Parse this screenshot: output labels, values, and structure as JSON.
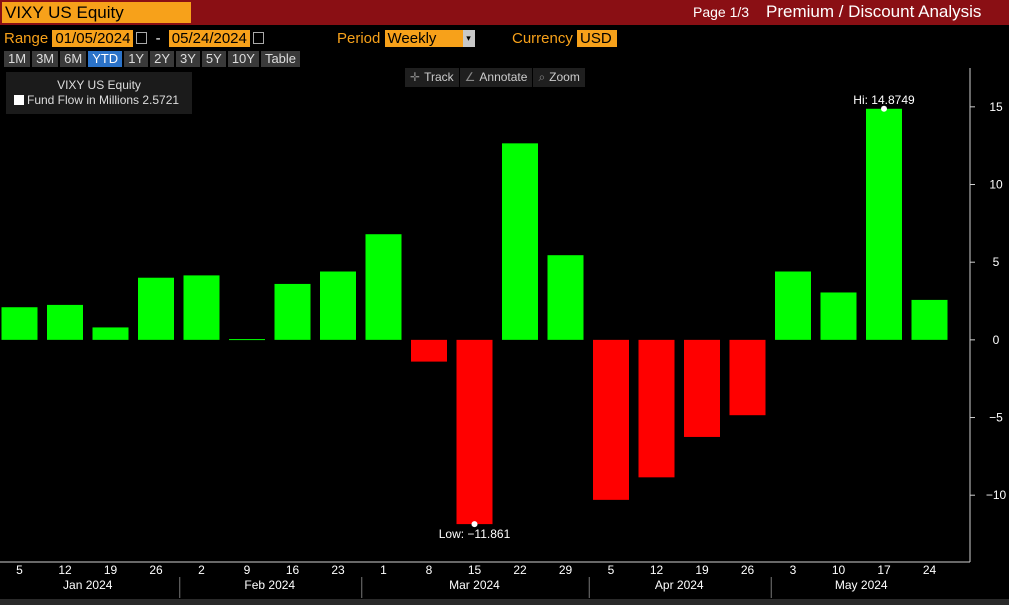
{
  "header": {
    "ticker": "VIXY US Equity",
    "page": "Page 1/3",
    "title": "Premium / Discount Analysis"
  },
  "controls": {
    "range_label": "Range",
    "start_date": "01/05/2024",
    "separator": "-",
    "end_date": "05/24/2024",
    "period_label": "Period",
    "period_value": "Weekly",
    "currency_label": "Currency",
    "currency_value": "USD",
    "range_buttons": [
      "1M",
      "3M",
      "6M",
      "YTD",
      "1Y",
      "2Y",
      "3Y",
      "5Y",
      "10Y",
      "Table"
    ],
    "active_range": "YTD"
  },
  "legend": {
    "title": "VIXY US Equity",
    "item": "Fund Flow in Millions 2.5721"
  },
  "toolbar": {
    "track": "Track",
    "annotate": "Annotate",
    "zoom": "Zoom"
  },
  "colors": {
    "positive": "#00ff00",
    "negative": "#ff0000",
    "header_bg": "#8a0f14",
    "accent": "#f7a11a"
  },
  "chart_data": {
    "type": "bar",
    "categories": [
      "5",
      "12",
      "19",
      "26",
      "2",
      "9",
      "16",
      "23",
      "1",
      "8",
      "15",
      "22",
      "29",
      "5",
      "12",
      "19",
      "26",
      "3",
      "10",
      "17",
      "24"
    ],
    "months": [
      {
        "label": "Jan 2024",
        "from": 0,
        "to": 3
      },
      {
        "label": "Feb 2024",
        "from": 4,
        "to": 7
      },
      {
        "label": "Mar 2024",
        "from": 8,
        "to": 12
      },
      {
        "label": "Apr 2024",
        "from": 13,
        "to": 16
      },
      {
        "label": "May 2024",
        "from": 17,
        "to": 20
      }
    ],
    "series": [
      {
        "name": "Fund Flow in Millions",
        "values": [
          2.1,
          2.25,
          0.8,
          4.0,
          4.15,
          0.05,
          3.6,
          4.4,
          6.8,
          -1.4,
          -11.861,
          12.65,
          5.45,
          -10.3,
          -8.85,
          -6.25,
          -4.85,
          4.4,
          3.05,
          14.8749,
          2.5721
        ]
      }
    ],
    "annotations": [
      {
        "text": "Hi: 14.8749",
        "index": 19,
        "value": 14.8749
      },
      {
        "text": "Low: -11.861",
        "index": 10,
        "value": -11.861
      }
    ],
    "yticks": [
      15,
      10,
      5,
      0,
      -5,
      -10
    ],
    "ylim": [
      -14.3,
      17.5
    ],
    "grid": false,
    "legend_position": "top-left"
  }
}
